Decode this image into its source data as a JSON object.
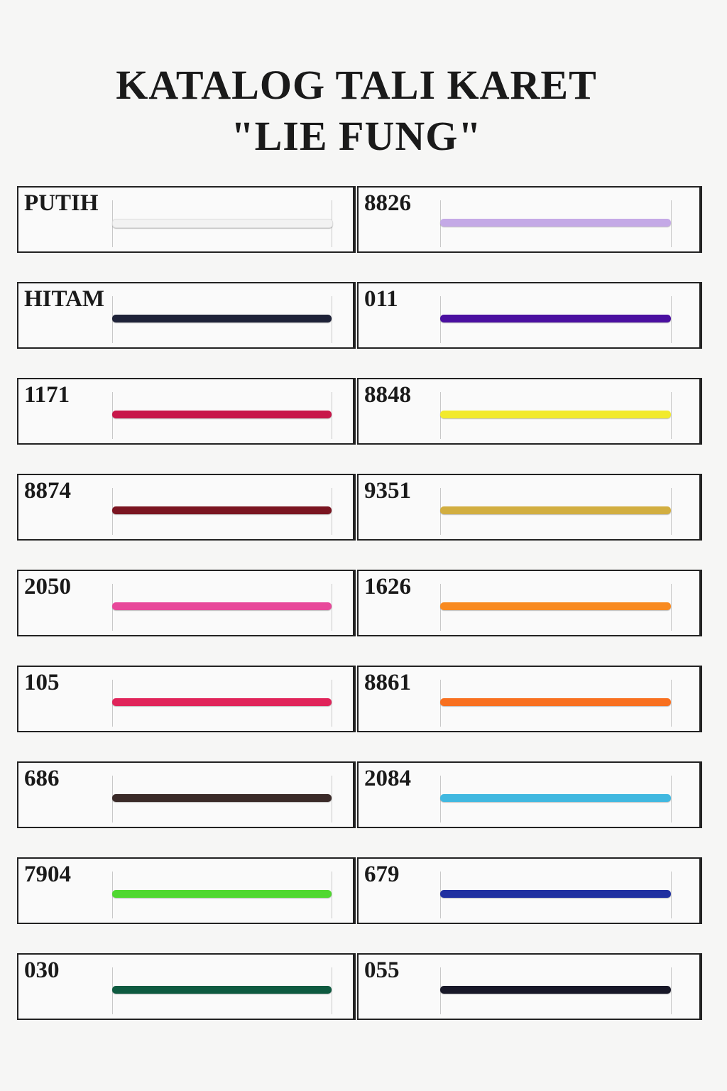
{
  "title": {
    "line1": "KATALOG TALI KARET",
    "line2": "\"LIE FUNG\""
  },
  "items": [
    {
      "label": "PUTIH"
    },
    {
      "label": "8826"
    },
    {
      "label": "HITAM"
    },
    {
      "label": "011"
    },
    {
      "label": "1171"
    },
    {
      "label": "8848"
    },
    {
      "label": "8874"
    },
    {
      "label": "9351"
    },
    {
      "label": "2050"
    },
    {
      "label": "1626"
    },
    {
      "label": "105"
    },
    {
      "label": "8861"
    },
    {
      "label": "686"
    },
    {
      "label": "2084"
    },
    {
      "label": "7904"
    },
    {
      "label": "679"
    },
    {
      "label": "030"
    },
    {
      "label": "055"
    }
  ]
}
